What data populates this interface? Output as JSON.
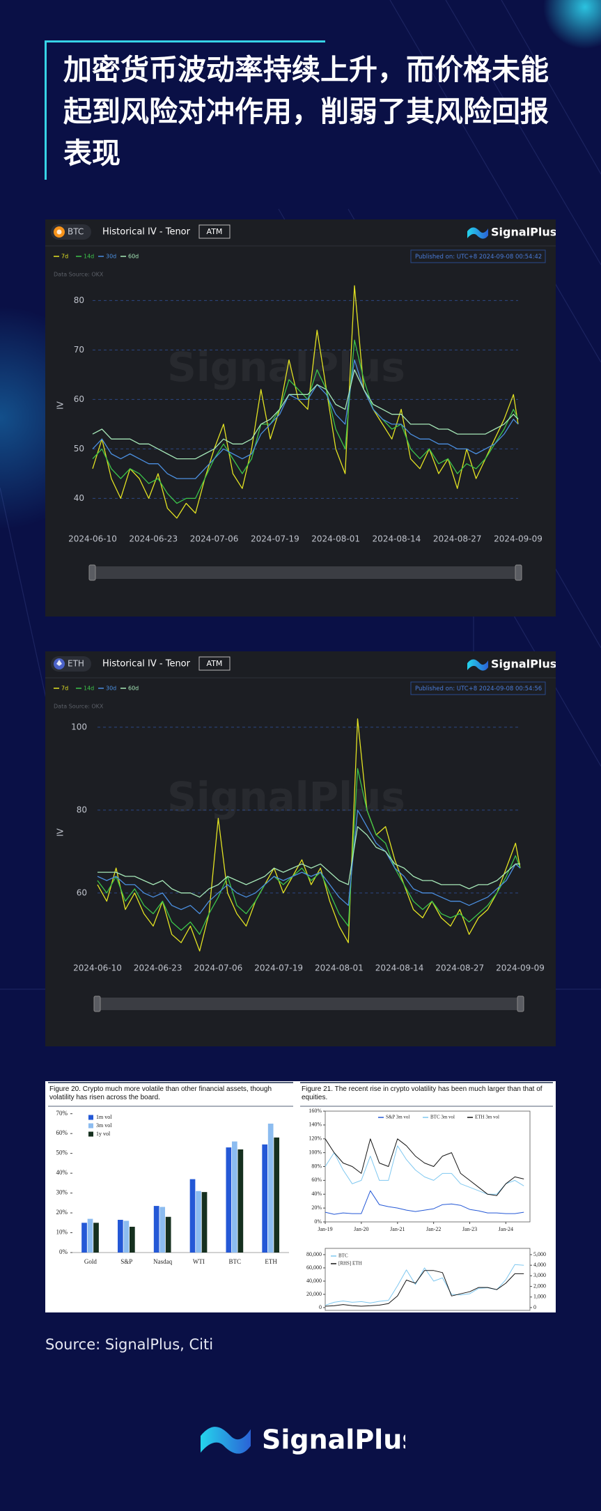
{
  "header": {
    "title": "加密货币波动率持续上升，而价格未能起到风险对冲作用，削弱了其风险回报表现"
  },
  "chart_data": [
    {
      "type": "line",
      "asset": "BTC",
      "title": "Historical IV - Tenor",
      "tag": "ATM",
      "brand": "SignalPlus",
      "published": "Published on: UTC+8 2024-09-08 00:54:42",
      "data_source": "Data Source: OKX",
      "watermark": "SignalPlus",
      "y_label": "IV",
      "x": [
        "2024-06-10",
        "2024-06-12",
        "2024-06-14",
        "2024-06-16",
        "2024-06-18",
        "2024-06-20",
        "2024-06-22",
        "2024-06-24",
        "2024-06-26",
        "2024-06-28",
        "2024-06-30",
        "2024-07-02",
        "2024-07-04",
        "2024-07-06",
        "2024-07-08",
        "2024-07-10",
        "2024-07-12",
        "2024-07-14",
        "2024-07-16",
        "2024-07-18",
        "2024-07-20",
        "2024-07-22",
        "2024-07-24",
        "2024-07-26",
        "2024-07-28",
        "2024-07-30",
        "2024-08-01",
        "2024-08-03",
        "2024-08-05",
        "2024-08-07",
        "2024-08-09",
        "2024-08-11",
        "2024-08-13",
        "2024-08-15",
        "2024-08-17",
        "2024-08-19",
        "2024-08-21",
        "2024-08-23",
        "2024-08-25",
        "2024-08-27",
        "2024-08-29",
        "2024-08-31",
        "2024-09-02",
        "2024-09-04",
        "2024-09-06",
        "2024-09-08",
        "2024-09-09"
      ],
      "series": [
        {
          "name": "7d",
          "color": "#e3e322",
          "values": [
            46,
            52,
            44,
            40,
            46,
            44,
            40,
            45,
            38,
            36,
            39,
            37,
            44,
            50,
            55,
            45,
            42,
            50,
            62,
            52,
            58,
            68,
            60,
            58,
            74,
            62,
            50,
            45,
            83,
            62,
            58,
            55,
            52,
            58,
            48,
            46,
            50,
            45,
            48,
            42,
            50,
            44,
            48,
            52,
            56,
            61,
            55
          ]
        },
        {
          "name": "14d",
          "color": "#3cc44a",
          "values": [
            48,
            50,
            46,
            44,
            46,
            45,
            43,
            44,
            41,
            39,
            40,
            40,
            44,
            48,
            51,
            48,
            45,
            48,
            55,
            55,
            58,
            64,
            62,
            60,
            66,
            62,
            54,
            50,
            72,
            64,
            58,
            56,
            54,
            55,
            50,
            48,
            50,
            47,
            48,
            45,
            47,
            46,
            48,
            51,
            54,
            58,
            56
          ]
        },
        {
          "name": "30d",
          "color": "#4b8fe0",
          "values": [
            50,
            52,
            49,
            48,
            49,
            48,
            47,
            47,
            45,
            44,
            44,
            44,
            46,
            48,
            50,
            49,
            48,
            49,
            53,
            55,
            57,
            61,
            60,
            60,
            63,
            61,
            57,
            55,
            68,
            62,
            58,
            56,
            55,
            55,
            53,
            52,
            52,
            51,
            51,
            50,
            50,
            49,
            50,
            51,
            53,
            56,
            55
          ]
        },
        {
          "name": "60d",
          "color": "#a6e8b8",
          "values": [
            53,
            54,
            52,
            52,
            52,
            51,
            51,
            50,
            49,
            48,
            48,
            48,
            49,
            50,
            52,
            51,
            51,
            52,
            55,
            56,
            58,
            61,
            61,
            61,
            63,
            62,
            59,
            58,
            66,
            62,
            59,
            58,
            57,
            57,
            55,
            55,
            55,
            54,
            54,
            53,
            53,
            53,
            53,
            54,
            55,
            57,
            56
          ]
        }
      ],
      "xlim": [
        "2024-06-10",
        "2024-09-09"
      ],
      "xticks": [
        "2024-06-10",
        "2024-06-23",
        "2024-07-06",
        "2024-07-19",
        "2024-08-01",
        "2024-08-14",
        "2024-08-27",
        "2024-09-09"
      ],
      "ylim": [
        34,
        84
      ],
      "yticks": [
        40,
        50,
        60,
        70,
        80
      ],
      "grid": true
    },
    {
      "type": "line",
      "asset": "ETH",
      "title": "Historical IV - Tenor",
      "tag": "ATM",
      "brand": "SignalPlus",
      "published": "Published on: UTC+8 2024-09-08 00:54:56",
      "data_source": "Data Source: OKX",
      "watermark": "SignalPlus",
      "y_label": "IV",
      "x": [
        "2024-06-10",
        "2024-06-12",
        "2024-06-14",
        "2024-06-16",
        "2024-06-18",
        "2024-06-20",
        "2024-06-22",
        "2024-06-24",
        "2024-06-26",
        "2024-06-28",
        "2024-06-30",
        "2024-07-02",
        "2024-07-04",
        "2024-07-06",
        "2024-07-08",
        "2024-07-10",
        "2024-07-12",
        "2024-07-14",
        "2024-07-16",
        "2024-07-18",
        "2024-07-20",
        "2024-07-22",
        "2024-07-24",
        "2024-07-26",
        "2024-07-28",
        "2024-07-30",
        "2024-08-01",
        "2024-08-03",
        "2024-08-05",
        "2024-08-07",
        "2024-08-09",
        "2024-08-11",
        "2024-08-13",
        "2024-08-15",
        "2024-08-17",
        "2024-08-19",
        "2024-08-21",
        "2024-08-23",
        "2024-08-25",
        "2024-08-27",
        "2024-08-29",
        "2024-08-31",
        "2024-09-02",
        "2024-09-04",
        "2024-09-06",
        "2024-09-08",
        "2024-09-09"
      ],
      "series": [
        {
          "name": "7d",
          "color": "#e3e322",
          "values": [
            62,
            58,
            66,
            56,
            60,
            55,
            52,
            58,
            50,
            48,
            52,
            46,
            55,
            78,
            60,
            55,
            52,
            58,
            62,
            66,
            60,
            64,
            68,
            62,
            66,
            58,
            52,
            48,
            102,
            80,
            74,
            76,
            68,
            62,
            56,
            54,
            58,
            54,
            52,
            56,
            50,
            54,
            56,
            60,
            66,
            72,
            66
          ]
        },
        {
          "name": "14d",
          "color": "#3cc44a",
          "values": [
            63,
            60,
            64,
            58,
            61,
            57,
            55,
            58,
            53,
            51,
            53,
            50,
            55,
            59,
            64,
            57,
            55,
            58,
            62,
            64,
            62,
            64,
            66,
            63,
            65,
            60,
            55,
            52,
            90,
            80,
            74,
            72,
            66,
            62,
            58,
            56,
            58,
            55,
            54,
            55,
            53,
            55,
            57,
            60,
            64,
            69,
            66
          ]
        },
        {
          "name": "30d",
          "color": "#4b8fe0",
          "values": [
            64,
            63,
            64,
            62,
            62,
            60,
            59,
            60,
            57,
            56,
            57,
            55,
            58,
            60,
            62,
            60,
            59,
            60,
            62,
            64,
            63,
            64,
            65,
            64,
            65,
            62,
            59,
            57,
            80,
            76,
            72,
            70,
            66,
            64,
            61,
            60,
            60,
            59,
            58,
            58,
            57,
            58,
            59,
            61,
            63,
            67,
            66
          ]
        },
        {
          "name": "60d",
          "color": "#a6e8b8",
          "values": [
            65,
            65,
            65,
            64,
            64,
            63,
            62,
            63,
            61,
            60,
            60,
            59,
            61,
            62,
            64,
            63,
            62,
            63,
            64,
            66,
            65,
            66,
            67,
            66,
            67,
            65,
            63,
            62,
            76,
            74,
            71,
            70,
            67,
            66,
            64,
            63,
            63,
            62,
            62,
            62,
            61,
            62,
            62,
            63,
            65,
            67,
            67
          ]
        }
      ],
      "xlim": [
        "2024-06-10",
        "2024-09-09"
      ],
      "xticks": [
        "2024-06-10",
        "2024-06-23",
        "2024-07-06",
        "2024-07-19",
        "2024-08-01",
        "2024-08-14",
        "2024-08-27",
        "2024-09-09"
      ],
      "ylim": [
        44,
        103
      ],
      "yticks": [
        60,
        80,
        100
      ],
      "grid": true
    },
    {
      "type": "bar",
      "title": "Figure 20. Crypto much more volatile than other financial assets, though volatility has risen across the board.",
      "categories": [
        "Gold",
        "S&P",
        "Nasdaq",
        "WTI",
        "BTC",
        "ETH"
      ],
      "series": [
        {
          "name": "1m vol",
          "color": "#2458d6",
          "values": [
            15,
            16.5,
            23.5,
            37,
            53,
            54.5
          ]
        },
        {
          "name": "3m vol",
          "color": "#8cbcf0",
          "values": [
            17,
            16,
            23,
            31,
            56,
            65
          ]
        },
        {
          "name": "1y vol",
          "color": "#16301f",
          "values": [
            15,
            13,
            18,
            30.5,
            52,
            58
          ]
        }
      ],
      "ylim": [
        0,
        72
      ],
      "yticks": [
        {
          "value": 0,
          "label": "0%"
        },
        {
          "value": 10,
          "label": "10%"
        },
        {
          "value": 20,
          "label": "20%"
        },
        {
          "value": 30,
          "label": "30%"
        },
        {
          "value": 40,
          "label": "40%"
        },
        {
          "value": 50,
          "label": "50%"
        },
        {
          "value": 60,
          "label": "60%"
        },
        {
          "value": 70,
          "label": "70%"
        }
      ],
      "grid": false
    },
    {
      "type": "line",
      "title": "Figure 21. The recent rise in crypto volatility has been much larger than that of equities.",
      "x": [
        "2019-01",
        "2019-04",
        "2019-07",
        "2019-10",
        "2020-01",
        "2020-04",
        "2020-07",
        "2020-10",
        "2021-01",
        "2021-04",
        "2021-07",
        "2021-10",
        "2022-01",
        "2022-04",
        "2022-07",
        "2022-10",
        "2023-01",
        "2023-04",
        "2023-07",
        "2023-10",
        "2024-01",
        "2024-04",
        "2024-07"
      ],
      "series": [
        {
          "name": "S&P 3m vol",
          "color": "#2458d6",
          "values": [
            14,
            11,
            13,
            12,
            12,
            45,
            25,
            22,
            20,
            17,
            15,
            17,
            19,
            25,
            26,
            24,
            18,
            16,
            13,
            13,
            12,
            12,
            14
          ]
        },
        {
          "name": "BTC 3m vol",
          "color": "#7fc8f0",
          "values": [
            80,
            100,
            75,
            55,
            60,
            95,
            60,
            60,
            110,
            90,
            75,
            65,
            60,
            70,
            70,
            55,
            50,
            45,
            40,
            40,
            55,
            60,
            52
          ]
        },
        {
          "name": "ETH 3m vol",
          "color": "#141414",
          "values": [
            120,
            100,
            85,
            80,
            70,
            120,
            85,
            80,
            120,
            110,
            95,
            85,
            80,
            95,
            100,
            70,
            60,
            50,
            40,
            38,
            55,
            65,
            62
          ]
        }
      ],
      "xlim": [
        "2019-01",
        "2024-09"
      ],
      "xticks": [
        {
          "value": "2019-01",
          "label": "Jan-19"
        },
        {
          "value": "2020-01",
          "label": "Jan-20"
        },
        {
          "value": "2021-01",
          "label": "Jan-21"
        },
        {
          "value": "2022-01",
          "label": "Jan-22"
        },
        {
          "value": "2023-01",
          "label": "Jan-23"
        },
        {
          "value": "2024-01",
          "label": "Jan-24"
        }
      ],
      "ylim": [
        0,
        160
      ],
      "yticks": [
        {
          "value": 0,
          "label": "0%"
        },
        {
          "value": 20,
          "label": "20%"
        },
        {
          "value": 40,
          "label": "40%"
        },
        {
          "value": 60,
          "label": "60%"
        },
        {
          "value": 80,
          "label": "80%"
        },
        {
          "value": 100,
          "label": "100%"
        },
        {
          "value": 120,
          "label": "120%"
        },
        {
          "value": 140,
          "label": "140%"
        },
        {
          "value": 160,
          "label": "160%"
        }
      ],
      "grid": false
    },
    {
      "type": "line",
      "x": [
        "2019-01",
        "2019-04",
        "2019-07",
        "2019-10",
        "2020-01",
        "2020-04",
        "2020-07",
        "2020-10",
        "2021-01",
        "2021-04",
        "2021-07",
        "2021-10",
        "2022-01",
        "2022-04",
        "2022-07",
        "2022-10",
        "2023-01",
        "2023-04",
        "2023-07",
        "2023-10",
        "2024-01",
        "2024-04",
        "2024-07"
      ],
      "series": [
        {
          "name": "BTC",
          "color": "#7fc8f0",
          "values": [
            3500,
            8000,
            10000,
            8000,
            9000,
            7000,
            9500,
            11000,
            33000,
            57000,
            35000,
            60000,
            40000,
            45000,
            20000,
            19000,
            21000,
            29000,
            30000,
            27000,
            42000,
            65000,
            64000
          ]
        },
        {
          "name": "[RHS] ETH",
          "color": "#141414",
          "axis": "y2",
          "values": [
            130,
            170,
            290,
            180,
            130,
            170,
            230,
            380,
            1100,
            2600,
            2300,
            3500,
            3500,
            3300,
            1100,
            1300,
            1500,
            1900,
            1900,
            1700,
            2300,
            3200,
            3200
          ]
        }
      ],
      "xlim": [
        "2019-01",
        "2024-09"
      ],
      "ylim": [
        0,
        80000
      ],
      "yticks": [
        0,
        {
          "value": 20000,
          "label": "20,000"
        },
        {
          "value": 40000,
          "label": "40,000"
        },
        {
          "value": 60000,
          "label": "60,000"
        },
        {
          "value": 80000,
          "label": "80,000"
        }
      ],
      "y2lim": [
        0,
        5000
      ],
      "y2ticks": [
        0,
        {
          "value": 1000,
          "label": "1,000"
        },
        {
          "value": 2000,
          "label": "2,000"
        },
        {
          "value": 3000,
          "label": "3,000"
        },
        {
          "value": 4000,
          "label": "4,000"
        },
        {
          "value": 5000,
          "label": "5,000"
        }
      ],
      "grid": false
    }
  ],
  "source": "Source: SignalPlus, Citi",
  "footer": {
    "brand": "SignalPlus"
  }
}
